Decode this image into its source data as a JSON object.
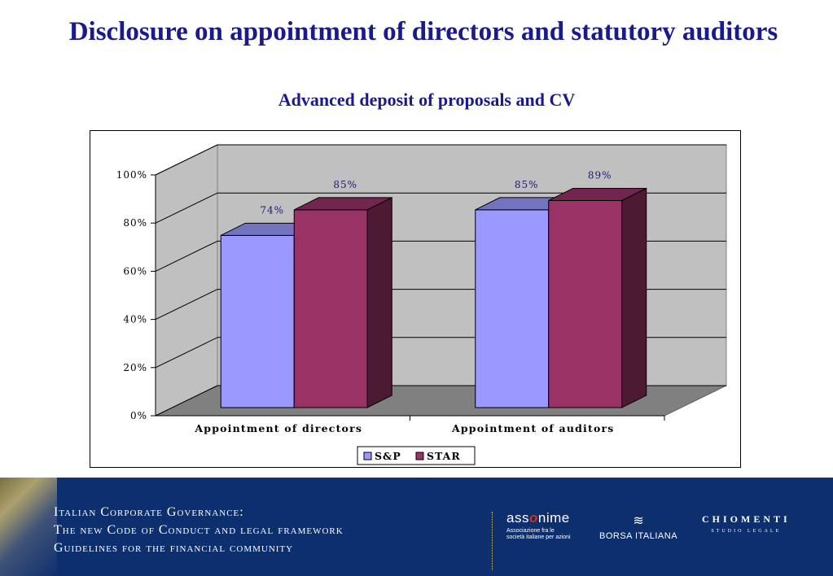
{
  "slide": {
    "title": "Disclosure on appointment of directors and statutory auditors",
    "subtitle": "Advanced deposit of proposals and CV"
  },
  "chart_data": {
    "type": "bar",
    "categories": [
      "Appointment of directors",
      "Appointment of auditors"
    ],
    "series": [
      {
        "name": "S&P",
        "values": [
          74,
          85
        ],
        "labels": [
          "74%",
          "85%"
        ],
        "color": "#9999ff"
      },
      {
        "name": "STAR",
        "values": [
          85,
          89
        ],
        "labels": [
          "85%",
          "89%"
        ],
        "color": "#993366"
      }
    ],
    "yticks": [
      "0%",
      "20%",
      "40%",
      "60%",
      "80%",
      "100%"
    ],
    "ylim": [
      0,
      100
    ],
    "grid": true,
    "three_d": true,
    "legend_position": "bottom"
  },
  "footer": {
    "lines": [
      "Italian Corporate Governance:",
      "The new Code of Conduct and legal framework",
      "Guidelines for the financial community"
    ],
    "logos": {
      "assonime_pre": "ass",
      "assonime_o": "o",
      "assonime_post": "nime",
      "assonime_tag": "Associazione fra le società italiane per azioni",
      "borsa": "BORSA ITALIANA",
      "chiomenti": "CHIOMENTI",
      "chiomenti_sub": "STUDIO LEGALE"
    }
  }
}
